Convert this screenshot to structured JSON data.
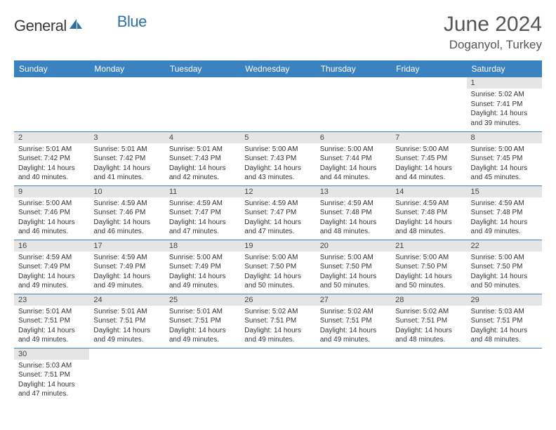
{
  "brand": {
    "part1": "General",
    "part2": "Blue"
  },
  "title": "June 2024",
  "location": "Doganyol, Turkey",
  "colors": {
    "header_bg": "#3b83c0",
    "header_text": "#ffffff",
    "daynum_bg": "#e5e5e5",
    "row_divider": "#3b83c0",
    "brand_blue": "#2f6fa8",
    "body_text": "#333333",
    "title_text": "#555555"
  },
  "typography": {
    "month_title_size": 30,
    "location_size": 17,
    "header_cell_size": 12,
    "daynum_size": 11,
    "body_size": 10
  },
  "daysOfWeek": [
    "Sunday",
    "Monday",
    "Tuesday",
    "Wednesday",
    "Thursday",
    "Friday",
    "Saturday"
  ],
  "weeks": [
    [
      null,
      null,
      null,
      null,
      null,
      null,
      {
        "n": "1",
        "sunrise": "5:02 AM",
        "sunset": "7:41 PM",
        "daylight": "14 hours and 39 minutes."
      }
    ],
    [
      {
        "n": "2",
        "sunrise": "5:01 AM",
        "sunset": "7:42 PM",
        "daylight": "14 hours and 40 minutes."
      },
      {
        "n": "3",
        "sunrise": "5:01 AM",
        "sunset": "7:42 PM",
        "daylight": "14 hours and 41 minutes."
      },
      {
        "n": "4",
        "sunrise": "5:01 AM",
        "sunset": "7:43 PM",
        "daylight": "14 hours and 42 minutes."
      },
      {
        "n": "5",
        "sunrise": "5:00 AM",
        "sunset": "7:43 PM",
        "daylight": "14 hours and 43 minutes."
      },
      {
        "n": "6",
        "sunrise": "5:00 AM",
        "sunset": "7:44 PM",
        "daylight": "14 hours and 44 minutes."
      },
      {
        "n": "7",
        "sunrise": "5:00 AM",
        "sunset": "7:45 PM",
        "daylight": "14 hours and 44 minutes."
      },
      {
        "n": "8",
        "sunrise": "5:00 AM",
        "sunset": "7:45 PM",
        "daylight": "14 hours and 45 minutes."
      }
    ],
    [
      {
        "n": "9",
        "sunrise": "5:00 AM",
        "sunset": "7:46 PM",
        "daylight": "14 hours and 46 minutes."
      },
      {
        "n": "10",
        "sunrise": "4:59 AM",
        "sunset": "7:46 PM",
        "daylight": "14 hours and 46 minutes."
      },
      {
        "n": "11",
        "sunrise": "4:59 AM",
        "sunset": "7:47 PM",
        "daylight": "14 hours and 47 minutes."
      },
      {
        "n": "12",
        "sunrise": "4:59 AM",
        "sunset": "7:47 PM",
        "daylight": "14 hours and 47 minutes."
      },
      {
        "n": "13",
        "sunrise": "4:59 AM",
        "sunset": "7:48 PM",
        "daylight": "14 hours and 48 minutes."
      },
      {
        "n": "14",
        "sunrise": "4:59 AM",
        "sunset": "7:48 PM",
        "daylight": "14 hours and 48 minutes."
      },
      {
        "n": "15",
        "sunrise": "4:59 AM",
        "sunset": "7:48 PM",
        "daylight": "14 hours and 49 minutes."
      }
    ],
    [
      {
        "n": "16",
        "sunrise": "4:59 AM",
        "sunset": "7:49 PM",
        "daylight": "14 hours and 49 minutes."
      },
      {
        "n": "17",
        "sunrise": "4:59 AM",
        "sunset": "7:49 PM",
        "daylight": "14 hours and 49 minutes."
      },
      {
        "n": "18",
        "sunrise": "5:00 AM",
        "sunset": "7:49 PM",
        "daylight": "14 hours and 49 minutes."
      },
      {
        "n": "19",
        "sunrise": "5:00 AM",
        "sunset": "7:50 PM",
        "daylight": "14 hours and 50 minutes."
      },
      {
        "n": "20",
        "sunrise": "5:00 AM",
        "sunset": "7:50 PM",
        "daylight": "14 hours and 50 minutes."
      },
      {
        "n": "21",
        "sunrise": "5:00 AM",
        "sunset": "7:50 PM",
        "daylight": "14 hours and 50 minutes."
      },
      {
        "n": "22",
        "sunrise": "5:00 AM",
        "sunset": "7:50 PM",
        "daylight": "14 hours and 50 minutes."
      }
    ],
    [
      {
        "n": "23",
        "sunrise": "5:01 AM",
        "sunset": "7:51 PM",
        "daylight": "14 hours and 49 minutes."
      },
      {
        "n": "24",
        "sunrise": "5:01 AM",
        "sunset": "7:51 PM",
        "daylight": "14 hours and 49 minutes."
      },
      {
        "n": "25",
        "sunrise": "5:01 AM",
        "sunset": "7:51 PM",
        "daylight": "14 hours and 49 minutes."
      },
      {
        "n": "26",
        "sunrise": "5:02 AM",
        "sunset": "7:51 PM",
        "daylight": "14 hours and 49 minutes."
      },
      {
        "n": "27",
        "sunrise": "5:02 AM",
        "sunset": "7:51 PM",
        "daylight": "14 hours and 49 minutes."
      },
      {
        "n": "28",
        "sunrise": "5:02 AM",
        "sunset": "7:51 PM",
        "daylight": "14 hours and 48 minutes."
      },
      {
        "n": "29",
        "sunrise": "5:03 AM",
        "sunset": "7:51 PM",
        "daylight": "14 hours and 48 minutes."
      }
    ],
    [
      {
        "n": "30",
        "sunrise": "5:03 AM",
        "sunset": "7:51 PM",
        "daylight": "14 hours and 47 minutes."
      },
      null,
      null,
      null,
      null,
      null,
      null
    ]
  ],
  "labels": {
    "sunrise": "Sunrise:",
    "sunset": "Sunset:",
    "daylight": "Daylight:"
  }
}
